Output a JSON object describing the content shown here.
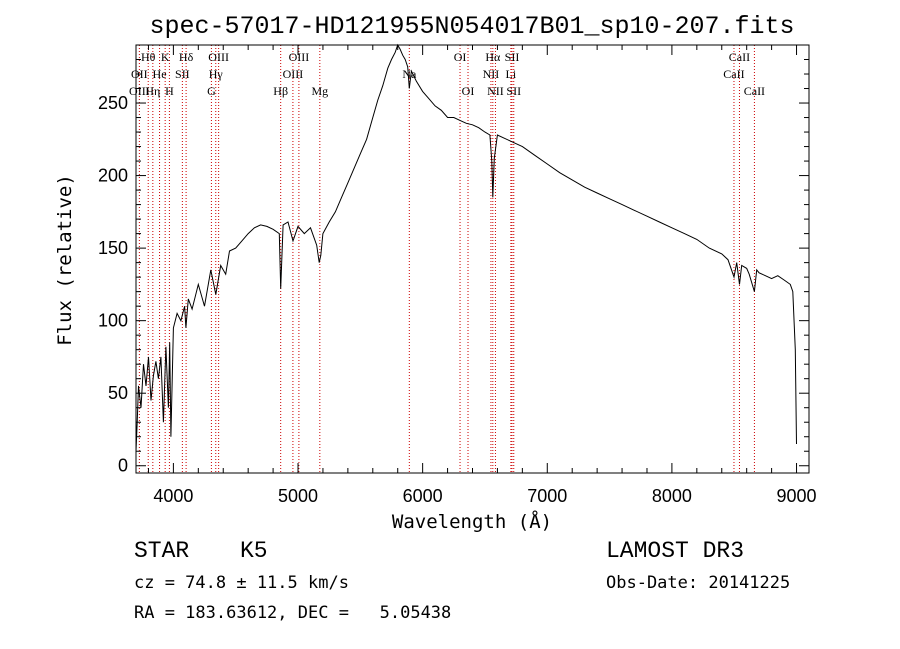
{
  "chart_data": {
    "type": "line",
    "title": "spec-57017-HD121955N054017B01_sp10-207.fits",
    "xlabel": "Wavelength (Å)",
    "ylabel": "Flux (relative)",
    "xlim": [
      3700,
      9100
    ],
    "ylim": [
      -5,
      290
    ],
    "xticks": [
      4000,
      5000,
      6000,
      7000,
      8000,
      9000
    ],
    "yticks": [
      0,
      50,
      100,
      150,
      200,
      250
    ],
    "grid": false,
    "series": [
      {
        "name": "flux",
        "x": [
          3700,
          3710,
          3720,
          3740,
          3760,
          3780,
          3800,
          3820,
          3840,
          3860,
          3880,
          3900,
          3920,
          3940,
          3960,
          3970,
          3980,
          4000,
          4030,
          4060,
          4090,
          4100,
          4120,
          4150,
          4200,
          4250,
          4300,
          4340,
          4380,
          4420,
          4450,
          4500,
          4550,
          4600,
          4650,
          4700,
          4750,
          4800,
          4850,
          4861,
          4880,
          4920,
          4960,
          5000,
          5050,
          5100,
          5150,
          5170,
          5183,
          5200,
          5250,
          5300,
          5350,
          5400,
          5450,
          5500,
          5550,
          5600,
          5640,
          5680,
          5700,
          5720,
          5750,
          5780,
          5800,
          5820,
          5840,
          5860,
          5880,
          5893,
          5910,
          5950,
          6000,
          6050,
          6100,
          6150,
          6200,
          6250,
          6300,
          6350,
          6400,
          6450,
          6500,
          6540,
          6555,
          6563,
          6575,
          6600,
          6650,
          6700,
          6750,
          6800,
          6900,
          7000,
          7100,
          7200,
          7300,
          7400,
          7500,
          7600,
          7700,
          7800,
          7900,
          8000,
          8100,
          8200,
          8300,
          8400,
          8450,
          8498,
          8520,
          8542,
          8560,
          8600,
          8620,
          8662,
          8680,
          8700,
          8750,
          8800,
          8850,
          8900,
          8950,
          8970,
          8990,
          9000
        ],
        "values": [
          10,
          30,
          55,
          40,
          70,
          55,
          75,
          45,
          62,
          72,
          60,
          75,
          30,
          82,
          40,
          85,
          20,
          95,
          105,
          100,
          110,
          95,
          115,
          108,
          125,
          110,
          135,
          118,
          138,
          132,
          148,
          150,
          155,
          160,
          164,
          166,
          165,
          163,
          160,
          122,
          166,
          168,
          155,
          165,
          160,
          164,
          152,
          140,
          145,
          160,
          168,
          175,
          185,
          195,
          205,
          215,
          225,
          240,
          252,
          262,
          268,
          274,
          280,
          285,
          290,
          287,
          283,
          280,
          275,
          260,
          272,
          265,
          258,
          253,
          248,
          245,
          240,
          240,
          238,
          236,
          235,
          233,
          230,
          228,
          210,
          185,
          212,
          228,
          226,
          224,
          222,
          220,
          214,
          208,
          202,
          197,
          192,
          188,
          184,
          180,
          176,
          172,
          168,
          164,
          160,
          156,
          150,
          146,
          142,
          130,
          140,
          125,
          138,
          136,
          132,
          120,
          135,
          133,
          131,
          129,
          131,
          128,
          125,
          120,
          80,
          15
        ]
      }
    ],
    "line_annotations": [
      {
        "label": "Hθ",
        "x": 3798,
        "row": 0
      },
      {
        "label": "OII",
        "x": 3727,
        "row": 1
      },
      {
        "label": "OIII",
        "x": 3727,
        "row": 2
      },
      {
        "label": "K",
        "x": 3934,
        "row": 0
      },
      {
        "label": "He",
        "x": 3889,
        "row": 1
      },
      {
        "label": "Hη",
        "x": 3835,
        "row": 2
      },
      {
        "label": "SII",
        "x": 4072,
        "row": 1
      },
      {
        "label": "H",
        "x": 3968,
        "row": 2
      },
      {
        "label": "Hδ",
        "x": 4102,
        "row": 0
      },
      {
        "label": "OIII",
        "x": 4363,
        "row": 0
      },
      {
        "label": "Hγ",
        "x": 4340,
        "row": 1
      },
      {
        "label": "G",
        "x": 4305,
        "row": 2
      },
      {
        "label": "Hβ",
        "x": 4861,
        "row": 2
      },
      {
        "label": "OIII",
        "x": 5007,
        "row": 0
      },
      {
        "label": "OIII",
        "x": 4959,
        "row": 1
      },
      {
        "label": "Mg",
        "x": 5175,
        "row": 2
      },
      {
        "label": "Na",
        "x": 5893,
        "row": 1
      },
      {
        "label": "OI",
        "x": 6300,
        "row": 0
      },
      {
        "label": "OI",
        "x": 6364,
        "row": 2
      },
      {
        "label": "Hα",
        "x": 6563,
        "row": 0
      },
      {
        "label": "SII",
        "x": 6717,
        "row": 0
      },
      {
        "label": "NII",
        "x": 6548,
        "row": 1
      },
      {
        "label": "Li",
        "x": 6708,
        "row": 1
      },
      {
        "label": "NII",
        "x": 6584,
        "row": 2
      },
      {
        "label": "SII",
        "x": 6731,
        "row": 2
      },
      {
        "label": "CaII",
        "x": 8542,
        "row": 0
      },
      {
        "label": "CaII",
        "x": 8498,
        "row": 1
      },
      {
        "label": "CaII",
        "x": 8662,
        "row": 2
      }
    ],
    "line_markers": [
      3727,
      3798,
      3835,
      3889,
      3934,
      3968,
      4072,
      4102,
      4305,
      4340,
      4363,
      4861,
      4959,
      5007,
      5175,
      5893,
      6300,
      6364,
      6548,
      6563,
      6584,
      6708,
      6717,
      6731,
      8498,
      8542,
      8662
    ]
  },
  "info": {
    "object_class": "STAR",
    "subclass": "K5",
    "survey": "LAMOST DR3",
    "cz": "cz = 74.8 ± 11.5 km/s",
    "obs_date": "Obs-Date: 20141225",
    "coords": "RA = 183.63612, DEC =   5.05438"
  },
  "colors": {
    "axis": "#000000",
    "spectrum": "#000000",
    "marker": "#cc0000",
    "background": "#ffffff"
  }
}
